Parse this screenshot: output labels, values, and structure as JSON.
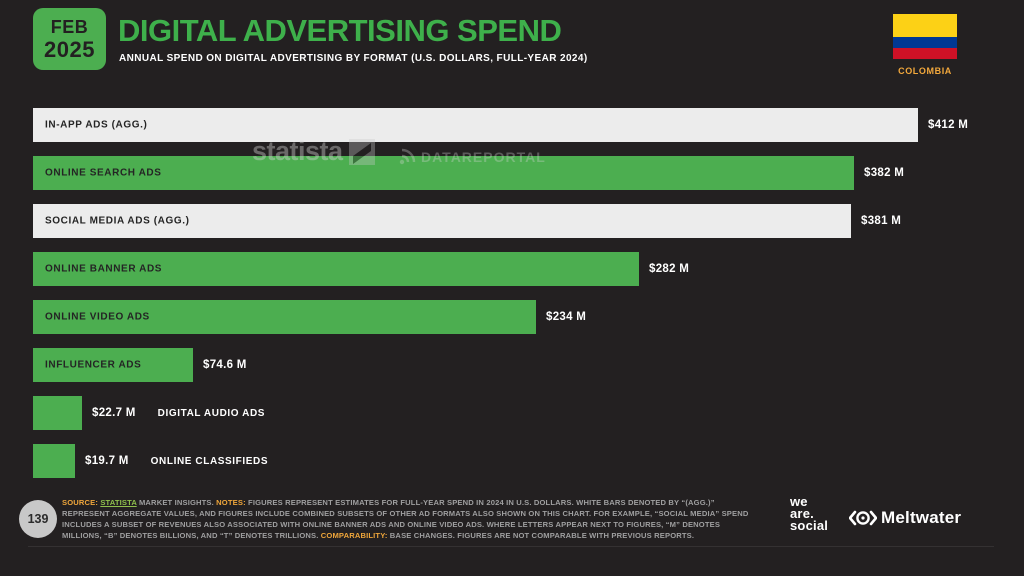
{
  "page": {
    "background": "#232021",
    "accent_green": "#4cae50",
    "title_green": "#3eb04b",
    "keyword_orange": "#efa63b"
  },
  "header": {
    "date_badge": {
      "month": "FEB",
      "year": "2025"
    },
    "title": "DIGITAL ADVERTISING SPEND",
    "subtitle": "ANNUAL SPEND ON DIGITAL ADVERTISING BY FORMAT (U.S. DOLLARS, FULL-YEAR 2024)",
    "country": "COLOMBIA",
    "flag_colors": {
      "yellow": "#FCD116",
      "blue": "#003893",
      "red": "#CE1126"
    }
  },
  "watermarks": {
    "statista": "statista",
    "datareportal": "DATAREPORTAL"
  },
  "chart_data": {
    "type": "bar",
    "orientation": "horizontal",
    "title": "DIGITAL ADVERTISING SPEND",
    "unit": "U.S. dollars, millions, full-year 2024",
    "xlim": [
      0,
      412
    ],
    "categories": [
      "IN-APP ADS (AGG.)",
      "ONLINE SEARCH ADS",
      "SOCIAL MEDIA ADS (AGG.)",
      "ONLINE BANNER ADS",
      "ONLINE VIDEO ADS",
      "INFLUENCER ADS",
      "DIGITAL AUDIO ADS",
      "ONLINE CLASSIFIEDS"
    ],
    "values": [
      412,
      382,
      381,
      282,
      234,
      74.6,
      22.7,
      19.7
    ],
    "rows": [
      {
        "label": "IN-APP ADS (AGG.)",
        "value": 412,
        "value_label": "$412 M",
        "style": "white",
        "label_outside": false
      },
      {
        "label": "ONLINE SEARCH ADS",
        "value": 382,
        "value_label": "$382 M",
        "style": "green",
        "label_outside": false
      },
      {
        "label": "SOCIAL MEDIA ADS (AGG.)",
        "value": 381,
        "value_label": "$381 M",
        "style": "white",
        "label_outside": false
      },
      {
        "label": "ONLINE BANNER ADS",
        "value": 282,
        "value_label": "$282 M",
        "style": "green",
        "label_outside": false
      },
      {
        "label": "ONLINE VIDEO ADS",
        "value": 234,
        "value_label": "$234 M",
        "style": "green",
        "label_outside": false
      },
      {
        "label": "INFLUENCER ADS",
        "value": 74.6,
        "value_label": "$74.6 M",
        "style": "green",
        "label_outside": false
      },
      {
        "label": "DIGITAL AUDIO ADS",
        "value": 22.7,
        "value_label": "$22.7 M",
        "style": "green",
        "label_outside": true
      },
      {
        "label": "ONLINE CLASSIFIEDS",
        "value": 19.7,
        "value_label": "$19.7 M",
        "style": "green",
        "label_outside": true
      }
    ]
  },
  "footer": {
    "page_number": "139",
    "segments": {
      "source_label": "SOURCE: ",
      "source_link": "STATISTA",
      "source_rest": " MARKET INSIGHTS. ",
      "notes_label": "NOTES: ",
      "notes_body": "FIGURES REPRESENT ESTIMATES FOR FULL-YEAR SPEND IN 2024 IN U.S. DOLLARS. WHITE BARS DENOTED BY “(AGG.)” REPRESENT AGGREGATE VALUES, AND FIGURES INCLUDE COMBINED SUBSETS OF OTHER AD FORMATS ALSO SHOWN ON THIS CHART. FOR EXAMPLE, “SOCIAL MEDIA” SPEND INCLUDES A SUBSET OF REVENUES ALSO ASSOCIATED WITH ONLINE BANNER ADS AND ONLINE VIDEO ADS. WHERE LETTERS APPEAR NEXT TO FIGURES, “M” DENOTES MILLIONS, “B” DENOTES BILLIONS, AND “T” DENOTES TRILLIONS. ",
      "comparability_label": "COMPARABILITY: ",
      "comparability_body": "BASE CHANGES. FIGURES ARE NOT COMPARABLE WITH PREVIOUS REPORTS."
    }
  },
  "branding": {
    "we_are_social_lines": {
      "l1": "we",
      "l2": "are.",
      "l3": "social"
    },
    "meltwater": "Meltwater"
  }
}
